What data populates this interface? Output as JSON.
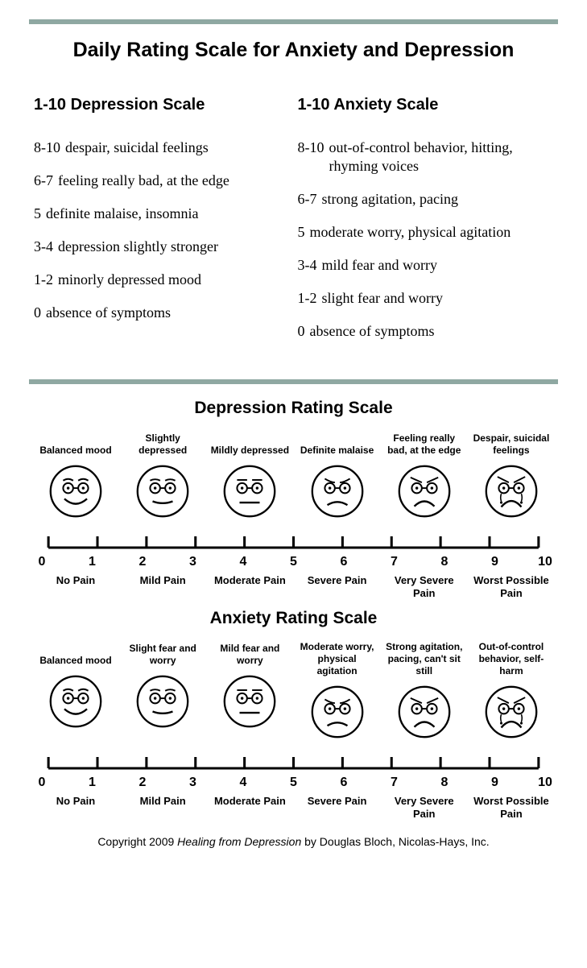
{
  "colors": {
    "rule": "#8fa8a2",
    "stroke": "#000000",
    "bg": "#ffffff"
  },
  "title": "Daily Rating Scale for Anxiety and Depression",
  "depression": {
    "heading": "1-10 Depression Scale",
    "items": [
      {
        "range": "8-10",
        "desc": "despair, suicidal feelings"
      },
      {
        "range": "6-7",
        "desc": "feeling really bad, at the edge"
      },
      {
        "range": "5",
        "desc": "definite malaise, insomnia"
      },
      {
        "range": "3-4",
        "desc": "depression slightly stronger"
      },
      {
        "range": "1-2",
        "desc": "minorly depressed mood"
      },
      {
        "range": "0",
        "desc": "absence of symptoms"
      }
    ]
  },
  "anxiety": {
    "heading": "1-10 Anxiety Scale",
    "items": [
      {
        "range": "8-10",
        "desc": "out-of-control behavior, hitting, rhyming voices"
      },
      {
        "range": "6-7",
        "desc": "strong agitation, pacing"
      },
      {
        "range": "5",
        "desc": "moderate worry, physical agitation"
      },
      {
        "range": "3-4",
        "desc": "mild fear and worry"
      },
      {
        "range": "1-2",
        "desc": "slight fear and worry"
      },
      {
        "range": "0",
        "desc": "absence of symptoms"
      }
    ]
  },
  "figures": [
    {
      "title": "Depression Rating Scale",
      "faces": [
        {
          "label": "Balanced mood",
          "type": "happy"
        },
        {
          "label": "Slightly depressed",
          "type": "slight"
        },
        {
          "label": "Mildly depressed",
          "type": "flat"
        },
        {
          "label": "Definite malaise",
          "type": "worried"
        },
        {
          "label": "Feeling really bad, at the edge",
          "type": "sad"
        },
        {
          "label": "Despair, suicidal feelings",
          "type": "crying"
        }
      ]
    },
    {
      "title": "Anxiety Rating Scale",
      "faces": [
        {
          "label": "Balanced mood",
          "type": "happy"
        },
        {
          "label": "Slight fear and worry",
          "type": "slight"
        },
        {
          "label": "Mild fear and worry",
          "type": "flat"
        },
        {
          "label": "Moderate worry, physical agitation",
          "type": "worried"
        },
        {
          "label": "Strong agitation, pacing, can't sit still",
          "type": "sad"
        },
        {
          "label": "Out-of-control behavior, self-harm",
          "type": "crying"
        }
      ]
    }
  ],
  "axis": {
    "ticks": [
      "0",
      "1",
      "2",
      "3",
      "4",
      "5",
      "6",
      "7",
      "8",
      "9",
      "10"
    ],
    "pain_labels": [
      "No Pain",
      "Mild Pain",
      "Moderate Pain",
      "Severe Pain",
      "Very Severe Pain",
      "Worst Possible Pain"
    ]
  },
  "copyright": {
    "prefix": "Copyright 2009 ",
    "italic": "Healing from Depression",
    "suffix": " by Douglas Bloch, Nicolas-Hays, Inc."
  }
}
